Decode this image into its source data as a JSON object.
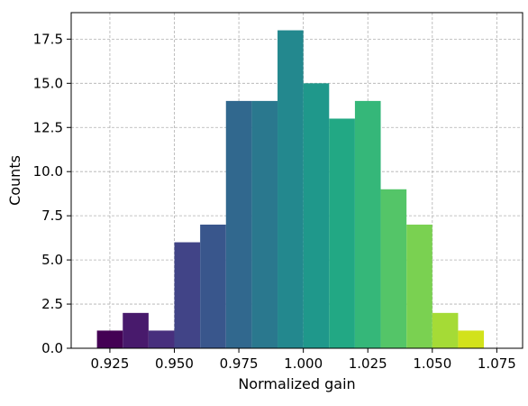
{
  "chart_data": {
    "type": "bar",
    "title": "",
    "xlabel": "Normalized gain",
    "ylabel": "Counts",
    "xlim": [
      0.91,
      1.085
    ],
    "ylim": [
      0,
      19
    ],
    "grid": true,
    "colormap": "viridis",
    "bins": [
      {
        "x0": 0.92,
        "x1": 0.93,
        "count": 1,
        "color": "#440154"
      },
      {
        "x0": 0.93,
        "x1": 0.94,
        "count": 2,
        "color": "#481a6c"
      },
      {
        "x0": 0.94,
        "x1": 0.95,
        "count": 1,
        "color": "#472f7d"
      },
      {
        "x0": 0.95,
        "x1": 0.96,
        "count": 6,
        "color": "#414487"
      },
      {
        "x0": 0.96,
        "x1": 0.97,
        "count": 7,
        "color": "#39568c"
      },
      {
        "x0": 0.97,
        "x1": 0.98,
        "count": 14,
        "color": "#31688e"
      },
      {
        "x0": 0.98,
        "x1": 0.99,
        "count": 14,
        "color": "#2a788e"
      },
      {
        "x0": 0.99,
        "x1": 1.0,
        "count": 18,
        "color": "#23888e"
      },
      {
        "x0": 1.0,
        "x1": 1.01,
        "count": 15,
        "color": "#1f988b"
      },
      {
        "x0": 1.01,
        "x1": 1.02,
        "count": 13,
        "color": "#22a884"
      },
      {
        "x0": 1.02,
        "x1": 1.03,
        "count": 14,
        "color": "#35b779"
      },
      {
        "x0": 1.03,
        "x1": 1.04,
        "count": 9,
        "color": "#54c568"
      },
      {
        "x0": 1.04,
        "x1": 1.05,
        "count": 7,
        "color": "#7ad151"
      },
      {
        "x0": 1.05,
        "x1": 1.06,
        "count": 2,
        "color": "#a5db36"
      },
      {
        "x0": 1.06,
        "x1": 1.07,
        "count": 1,
        "color": "#d2e21b"
      },
      {
        "x0": 1.07,
        "x1": 1.08,
        "count": 0,
        "color": "#fde725"
      }
    ],
    "x_ticks": [
      {
        "value": 0.925,
        "label": "0.925"
      },
      {
        "value": 0.95,
        "label": "0.950"
      },
      {
        "value": 0.975,
        "label": "0.975"
      },
      {
        "value": 1.0,
        "label": "1.000"
      },
      {
        "value": 1.025,
        "label": "1.025"
      },
      {
        "value": 1.05,
        "label": "1.050"
      },
      {
        "value": 1.075,
        "label": "1.075"
      }
    ],
    "y_ticks": [
      {
        "value": 0,
        "label": "0.0"
      },
      {
        "value": 2.5,
        "label": "2.5"
      },
      {
        "value": 5,
        "label": "5.0"
      },
      {
        "value": 7.5,
        "label": "7.5"
      },
      {
        "value": 10,
        "label": "10.0"
      },
      {
        "value": 12.5,
        "label": "12.5"
      },
      {
        "value": 15,
        "label": "15.0"
      },
      {
        "value": 17.5,
        "label": "17.5"
      }
    ]
  }
}
